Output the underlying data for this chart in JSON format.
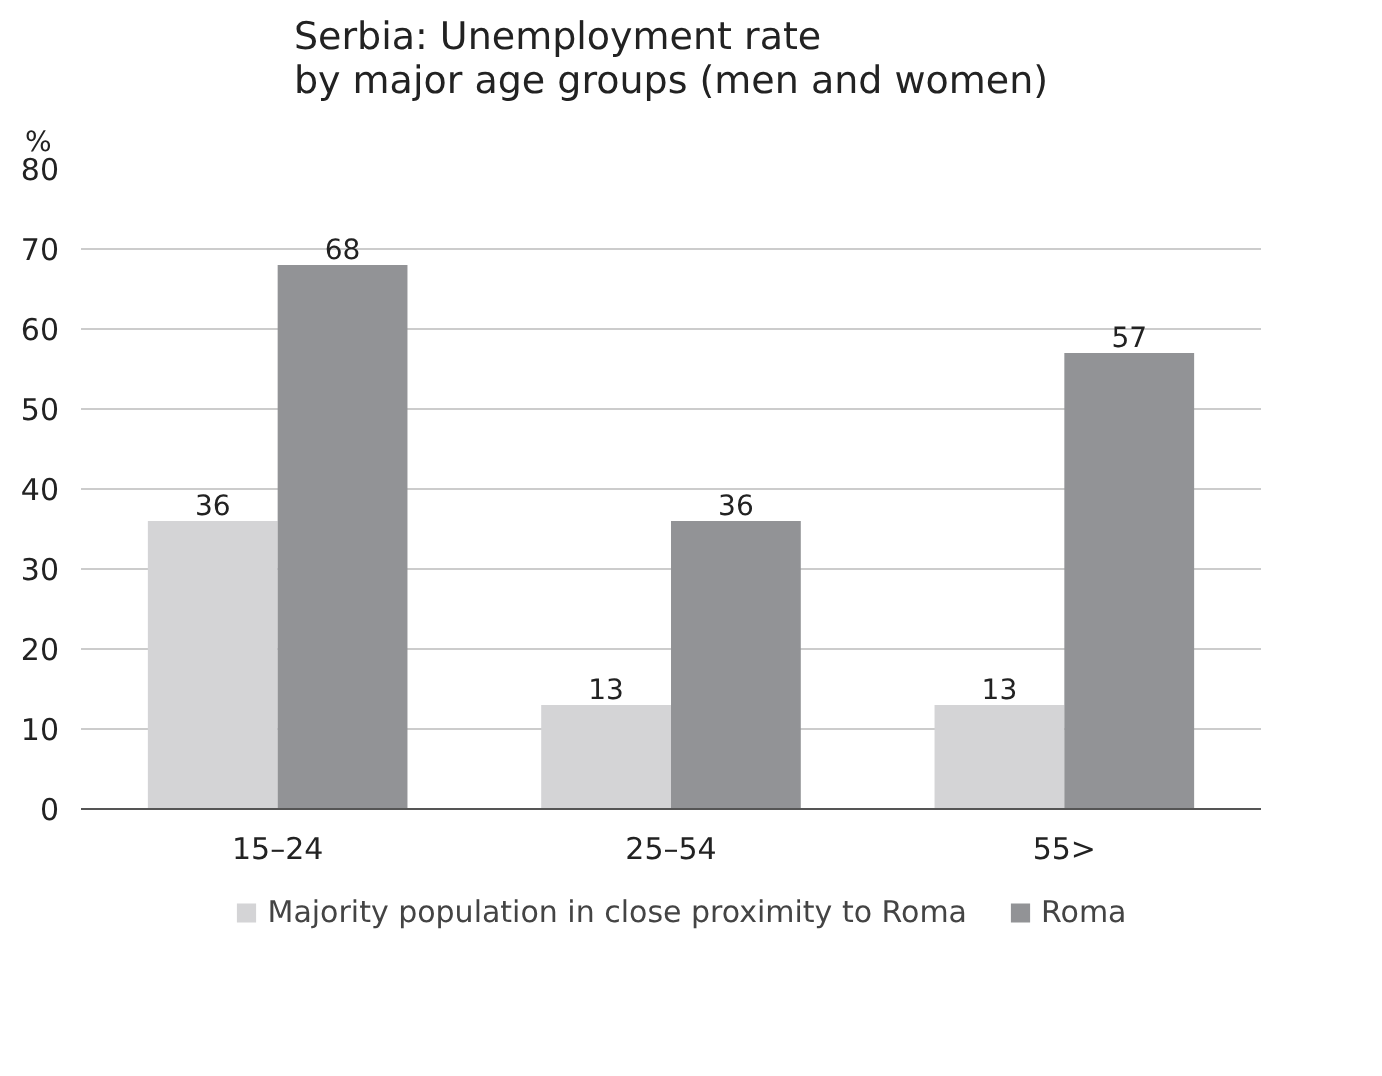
{
  "chart_data": {
    "type": "bar",
    "title": "Serbia: Unemployment rate\nby major age groups (men and women)",
    "ylabel": "%",
    "categories": [
      "15–24",
      "25–54",
      "55>"
    ],
    "series": [
      {
        "name": "Majority population in close proximity to Roma",
        "color": "#d4d4d6",
        "values": [
          36,
          13,
          13
        ]
      },
      {
        "name": "Roma",
        "color": "#929396",
        "values": [
          68,
          36,
          57
        ]
      }
    ],
    "ylim": [
      0,
      80
    ],
    "yticks": [
      0,
      10,
      20,
      30,
      40,
      50,
      60,
      70,
      80
    ],
    "grid": "y",
    "legend": "bottom",
    "data_labels": true
  }
}
